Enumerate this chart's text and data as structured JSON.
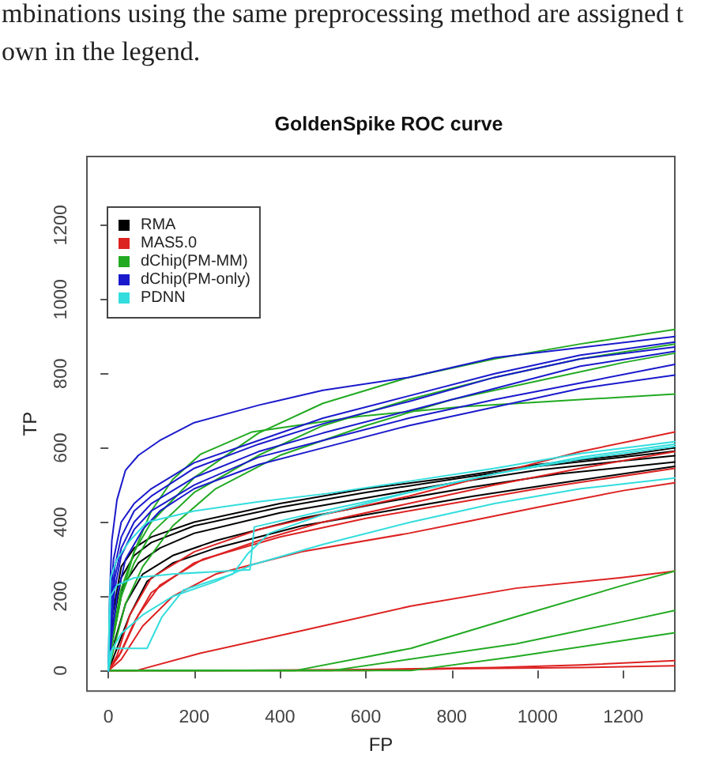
{
  "chart_data": {
    "type": "line",
    "title": "GoldenSpike ROC curve",
    "xlabel": "FP",
    "ylabel": "TP",
    "annotations": [
      "mbinations using the same preprocessing method are assigned t",
      "own in the legend."
    ],
    "xlim": [
      -50,
      1320
    ],
    "ylim": [
      -55,
      1385
    ],
    "xticks": [
      0,
      200,
      400,
      600,
      800,
      1000,
      1200
    ],
    "yticks": [
      0,
      200,
      400,
      600,
      800,
      1000,
      1200
    ],
    "legend": "top left",
    "series": [
      {
        "name": "RMA",
        "color": "#000000",
        "x": [
          0,
          10,
          30,
          60,
          100,
          200,
          400,
          600,
          800,
          1000,
          1200,
          1320
        ],
        "values": [
          0,
          150,
          280,
          330,
          360,
          400,
          450,
          490,
          520,
          555,
          580,
          600
        ]
      },
      {
        "color": "#000000",
        "x": [
          0,
          10,
          30,
          60,
          100,
          200,
          400,
          600,
          800,
          1000,
          1200,
          1320
        ],
        "values": [
          0,
          120,
          250,
          310,
          345,
          390,
          440,
          480,
          515,
          550,
          575,
          591
        ]
      },
      {
        "color": "#000000",
        "x": [
          0,
          12,
          35,
          70,
          120,
          200,
          400,
          600,
          800,
          1000,
          1200,
          1320
        ],
        "values": [
          0,
          100,
          230,
          290,
          330,
          370,
          425,
          465,
          505,
          540,
          565,
          579
        ]
      },
      {
        "color": "#000000",
        "x": [
          0,
          15,
          40,
          80,
          150,
          250,
          450,
          650,
          850,
          1050,
          1320
        ],
        "values": [
          0,
          80,
          180,
          260,
          310,
          350,
          410,
          455,
          495,
          530,
          562
        ]
      },
      {
        "color": "#000000",
        "x": [
          0,
          20,
          50,
          90,
          150,
          250,
          450,
          650,
          850,
          1050,
          1320
        ],
        "values": [
          0,
          60,
          150,
          240,
          290,
          330,
          390,
          430,
          470,
          505,
          550
        ]
      },
      {
        "name": "MAS5.0",
        "color": "#dd2222",
        "x": [
          0,
          20,
          50,
          100,
          200,
          350,
          500,
          700,
          900,
          1100,
          1320
        ],
        "values": [
          0,
          40,
          150,
          250,
          320,
          380,
          420,
          470,
          530,
          590,
          643
        ]
      },
      {
        "color": "#dd2222",
        "x": [
          0,
          25,
          60,
          100,
          200,
          350,
          500,
          700,
          900,
          1100,
          1320
        ],
        "values": [
          0,
          40,
          130,
          210,
          290,
          350,
          400,
          450,
          500,
          545,
          590
        ]
      },
      {
        "color": "#dd2222",
        "x": [
          0,
          30,
          70,
          120,
          220,
          400,
          600,
          800,
          1000,
          1320
        ],
        "values": [
          0,
          50,
          150,
          230,
          300,
          360,
          410,
          450,
          490,
          545
        ]
      },
      {
        "color": "#dd2222",
        "x": [
          0,
          30,
          80,
          150,
          250,
          450,
          700,
          830,
          1000,
          1200,
          1320
        ],
        "values": [
          0,
          30,
          120,
          200,
          260,
          320,
          370,
          400,
          440,
          485,
          506
        ]
      },
      {
        "color": "#dd2222",
        "x": [
          0,
          65,
          215,
          460,
          705,
          950,
          1200,
          1320
        ],
        "values": [
          0,
          0,
          47,
          110,
          174,
          222,
          251,
          268
        ]
      },
      {
        "color": "#dd2222",
        "x": [
          0,
          250,
          600,
          900,
          1100,
          1320
        ],
        "values": [
          0,
          0,
          3,
          8,
          15,
          27
        ]
      },
      {
        "color": "#dd2222",
        "x": [
          0,
          600,
          800,
          1100,
          1320
        ],
        "values": [
          0,
          0,
          5,
          8,
          13
        ]
      },
      {
        "name": "dChip(PM-MM)",
        "color": "#22aa22",
        "x": [
          0,
          10,
          30,
          60,
          100,
          200,
          350,
          500,
          700,
          900,
          1100,
          1320
        ],
        "values": [
          0,
          100,
          220,
          320,
          400,
          520,
          640,
          720,
          790,
          840,
          880,
          919
        ]
      },
      {
        "color": "#22aa22",
        "x": [
          0,
          10,
          30,
          60,
          100,
          200,
          350,
          500,
          700,
          900,
          1100,
          1320
        ],
        "values": [
          0,
          80,
          200,
          290,
          370,
          480,
          580,
          660,
          730,
          790,
          840,
          880
        ]
      },
      {
        "color": "#22aa22",
        "x": [
          0,
          15,
          40,
          80,
          150,
          250,
          400,
          600,
          800,
          1000,
          1200,
          1320
        ],
        "values": [
          0,
          70,
          180,
          280,
          390,
          490,
          580,
          660,
          730,
          780,
          830,
          855
        ]
      },
      {
        "color": "#22aa22",
        "x": [
          0,
          10,
          30,
          60,
          100,
          150,
          215,
          335,
          585,
          825,
          1100,
          1320
        ],
        "values": [
          0,
          80,
          200,
          320,
          430,
          515,
          583,
          643,
          685,
          711,
          730,
          745
        ]
      },
      {
        "color": "#22aa22",
        "x": [
          0,
          435,
          705,
          950,
          1200,
          1320
        ],
        "values": [
          0,
          0,
          60,
          145,
          230,
          268
        ]
      },
      {
        "color": "#22aa22",
        "x": [
          0,
          520,
          950,
          1200,
          1320
        ],
        "values": [
          0,
          0,
          72,
          132,
          162
        ]
      },
      {
        "color": "#22aa22",
        "x": [
          0,
          705,
          950,
          1200,
          1320
        ],
        "values": [
          0,
          0,
          38,
          81,
          102
        ]
      },
      {
        "name": "dChip(PM-only)",
        "color": "#1a1acc",
        "x": [
          0,
          3,
          8,
          20,
          40,
          70,
          120,
          200,
          350,
          500,
          700,
          900,
          1100,
          1320
        ],
        "values": [
          0,
          200,
          350,
          460,
          540,
          580,
          620,
          668,
          715,
          755,
          790,
          843,
          870,
          900
        ]
      },
      {
        "color": "#1a1acc",
        "x": [
          0,
          5,
          12,
          30,
          60,
          100,
          200,
          350,
          500,
          700,
          900,
          1100,
          1320
        ],
        "values": [
          0,
          180,
          300,
          400,
          450,
          490,
          560,
          620,
          680,
          740,
          800,
          850,
          885
        ]
      },
      {
        "color": "#1a1acc",
        "x": [
          0,
          5,
          15,
          30,
          60,
          100,
          200,
          350,
          500,
          700,
          900,
          1100,
          1320
        ],
        "values": [
          0,
          150,
          280,
          360,
          430,
          470,
          545,
          610,
          665,
          725,
          790,
          840,
          872
        ]
      },
      {
        "color": "#1a1acc",
        "x": [
          0,
          6,
          15,
          30,
          60,
          100,
          200,
          350,
          500,
          700,
          900,
          1100,
          1320
        ],
        "values": [
          0,
          120,
          250,
          330,
          400,
          450,
          520,
          590,
          640,
          700,
          760,
          820,
          860
        ]
      },
      {
        "color": "#1a1acc",
        "x": [
          0,
          6,
          15,
          30,
          60,
          100,
          200,
          350,
          500,
          700,
          900,
          1100,
          1320
        ],
        "values": [
          0,
          100,
          220,
          310,
          380,
          430,
          500,
          575,
          620,
          680,
          730,
          775,
          825
        ]
      },
      {
        "color": "#1a1acc",
        "x": [
          0,
          8,
          20,
          40,
          80,
          120,
          200,
          350,
          500,
          700,
          900,
          1100,
          1320
        ],
        "values": [
          0,
          90,
          200,
          300,
          380,
          430,
          490,
          555,
          600,
          660,
          710,
          760,
          796
        ]
      },
      {
        "name": "PDNN",
        "color": "#33dddd",
        "x": [
          0,
          2,
          5,
          20,
          50,
          90,
          200,
          350,
          510,
          700,
          900,
          1100,
          1320
        ],
        "values": [
          0,
          150,
          250,
          300,
          350,
          400,
          430,
          455,
          477,
          510,
          545,
          585,
          617
        ]
      },
      {
        "color": "#33dddd",
        "x": [
          0,
          10,
          90,
          125,
          175,
          290,
          325,
          375,
          500,
          700,
          900,
          1100,
          1320
        ],
        "values": [
          0,
          60,
          60,
          145,
          217,
          260,
          315,
          370,
          420,
          480,
          530,
          570,
          604
        ]
      },
      {
        "color": "#33dddd",
        "x": [
          0,
          5,
          30,
          80,
          150,
          250,
          335,
          500,
          705,
          900,
          1100,
          1320
        ],
        "values": [
          0,
          50,
          100,
          150,
          200,
          240,
          285,
          340,
          400,
          450,
          490,
          519
        ]
      },
      {
        "color": "#33dddd",
        "x": [
          0,
          5,
          20,
          60,
          150,
          330,
          340,
          500,
          700,
          900,
          1100,
          1320
        ],
        "values": [
          0,
          200,
          230,
          250,
          260,
          272,
          387,
          430,
          480,
          530,
          575,
          610
        ]
      }
    ]
  }
}
